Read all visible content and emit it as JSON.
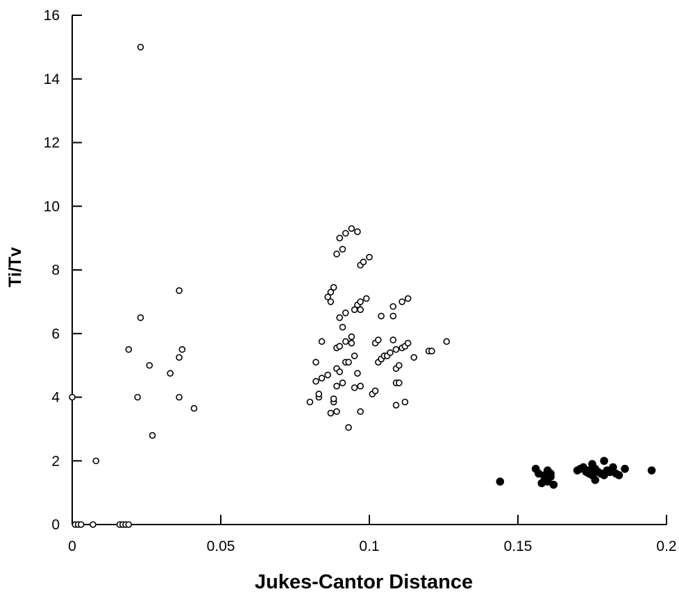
{
  "chart_data": {
    "type": "scatter",
    "xlabel": "Jukes-Cantor Distance",
    "ylabel": "Ti/Tv",
    "xlim": [
      0,
      0.2
    ],
    "ylim": [
      0,
      16
    ],
    "x_ticks": [
      0,
      0.05,
      0.1,
      0.15,
      0.2
    ],
    "x_tick_labels": [
      "0",
      "0.05",
      "0.1",
      "0.15",
      "0.2"
    ],
    "y_ticks": [
      0,
      2,
      4,
      6,
      8,
      10,
      12,
      14,
      16
    ],
    "y_tick_labels": [
      "0",
      "2",
      "4",
      "6",
      "8",
      "10",
      "12",
      "14",
      "16"
    ],
    "grid": false,
    "series": [
      {
        "marker": "open-circle",
        "points": [
          [
            0.0,
            4.0
          ],
          [
            0.001,
            0.0
          ],
          [
            0.002,
            0.0
          ],
          [
            0.003,
            0.0
          ],
          [
            0.007,
            0.0
          ],
          [
            0.008,
            2.0
          ],
          [
            0.016,
            0.0
          ],
          [
            0.017,
            0.0
          ],
          [
            0.018,
            0.0
          ],
          [
            0.019,
            0.0
          ],
          [
            0.019,
            5.5
          ],
          [
            0.022,
            4.0
          ],
          [
            0.023,
            6.5
          ],
          [
            0.023,
            15.0
          ],
          [
            0.026,
            5.0
          ],
          [
            0.027,
            2.8
          ],
          [
            0.033,
            4.75
          ],
          [
            0.036,
            7.35
          ],
          [
            0.036,
            5.25
          ],
          [
            0.036,
            4.0
          ],
          [
            0.037,
            5.5
          ],
          [
            0.041,
            3.65
          ],
          [
            0.08,
            3.85
          ],
          [
            0.082,
            5.1
          ],
          [
            0.082,
            4.5
          ],
          [
            0.083,
            4.0
          ],
          [
            0.083,
            4.1
          ],
          [
            0.084,
            4.6
          ],
          [
            0.084,
            5.75
          ],
          [
            0.086,
            4.7
          ],
          [
            0.086,
            7.15
          ],
          [
            0.087,
            3.5
          ],
          [
            0.087,
            7.0
          ],
          [
            0.087,
            7.3
          ],
          [
            0.088,
            3.85
          ],
          [
            0.088,
            3.95
          ],
          [
            0.088,
            7.45
          ],
          [
            0.089,
            5.55
          ],
          [
            0.089,
            4.9
          ],
          [
            0.089,
            4.35
          ],
          [
            0.089,
            8.5
          ],
          [
            0.089,
            3.55
          ],
          [
            0.09,
            5.6
          ],
          [
            0.09,
            6.5
          ],
          [
            0.09,
            9.0
          ],
          [
            0.09,
            4.8
          ],
          [
            0.091,
            8.65
          ],
          [
            0.091,
            6.2
          ],
          [
            0.091,
            4.45
          ],
          [
            0.092,
            9.15
          ],
          [
            0.092,
            5.1
          ],
          [
            0.092,
            6.65
          ],
          [
            0.092,
            5.75
          ],
          [
            0.093,
            5.1
          ],
          [
            0.093,
            3.05
          ],
          [
            0.094,
            9.3
          ],
          [
            0.094,
            5.9
          ],
          [
            0.094,
            5.7
          ],
          [
            0.095,
            6.75
          ],
          [
            0.095,
            5.3
          ],
          [
            0.095,
            4.3
          ],
          [
            0.096,
            9.2
          ],
          [
            0.096,
            4.75
          ],
          [
            0.096,
            6.9
          ],
          [
            0.097,
            8.15
          ],
          [
            0.097,
            7.0
          ],
          [
            0.097,
            6.75
          ],
          [
            0.097,
            3.55
          ],
          [
            0.097,
            4.35
          ],
          [
            0.098,
            8.25
          ],
          [
            0.099,
            7.1
          ],
          [
            0.1,
            8.4
          ],
          [
            0.101,
            4.1
          ],
          [
            0.102,
            4.2
          ],
          [
            0.102,
            5.7
          ],
          [
            0.103,
            5.1
          ],
          [
            0.103,
            5.8
          ],
          [
            0.104,
            6.55
          ],
          [
            0.104,
            5.2
          ],
          [
            0.105,
            5.3
          ],
          [
            0.106,
            5.3
          ],
          [
            0.107,
            5.4
          ],
          [
            0.108,
            6.55
          ],
          [
            0.108,
            5.8
          ],
          [
            0.108,
            6.85
          ],
          [
            0.109,
            4.45
          ],
          [
            0.109,
            4.9
          ],
          [
            0.109,
            5.5
          ],
          [
            0.109,
            3.75
          ],
          [
            0.11,
            4.45
          ],
          [
            0.11,
            5.0
          ],
          [
            0.111,
            5.55
          ],
          [
            0.111,
            7.0
          ],
          [
            0.112,
            3.85
          ],
          [
            0.112,
            5.6
          ],
          [
            0.113,
            7.1
          ],
          [
            0.113,
            5.7
          ],
          [
            0.115,
            5.25
          ],
          [
            0.12,
            5.45
          ],
          [
            0.121,
            5.45
          ],
          [
            0.126,
            5.75
          ]
        ]
      },
      {
        "marker": "filled-circle",
        "points": [
          [
            0.144,
            1.35
          ],
          [
            0.156,
            1.75
          ],
          [
            0.157,
            1.6
          ],
          [
            0.158,
            1.3
          ],
          [
            0.159,
            1.45
          ],
          [
            0.159,
            1.55
          ],
          [
            0.16,
            1.35
          ],
          [
            0.16,
            1.7
          ],
          [
            0.161,
            1.5
          ],
          [
            0.161,
            1.6
          ],
          [
            0.162,
            1.25
          ],
          [
            0.17,
            1.7
          ],
          [
            0.171,
            1.75
          ],
          [
            0.172,
            1.8
          ],
          [
            0.173,
            1.65
          ],
          [
            0.174,
            1.7
          ],
          [
            0.174,
            1.6
          ],
          [
            0.175,
            1.9
          ],
          [
            0.175,
            1.55
          ],
          [
            0.176,
            1.4
          ],
          [
            0.176,
            1.75
          ],
          [
            0.177,
            1.65
          ],
          [
            0.178,
            1.6
          ],
          [
            0.179,
            2.0
          ],
          [
            0.179,
            1.55
          ],
          [
            0.18,
            1.7
          ],
          [
            0.181,
            1.65
          ],
          [
            0.182,
            1.8
          ],
          [
            0.183,
            1.6
          ],
          [
            0.184,
            1.55
          ],
          [
            0.186,
            1.75
          ],
          [
            0.195,
            1.7
          ]
        ]
      }
    ]
  }
}
